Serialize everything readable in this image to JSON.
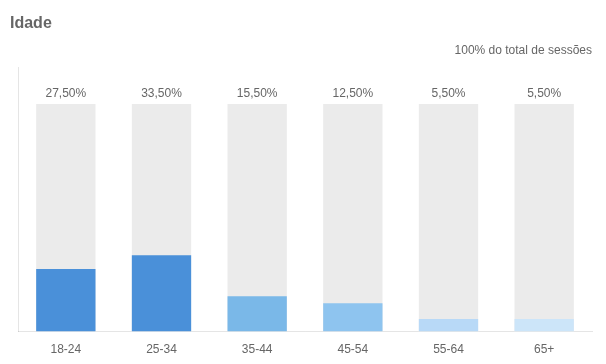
{
  "chart_data": {
    "type": "bar",
    "title": "Idade",
    "subtitle": "100% do total de sessões",
    "categories": [
      "18-24",
      "25-34",
      "35-44",
      "45-54",
      "55-64",
      "65+"
    ],
    "series": [
      {
        "values": [
          100,
          100,
          100,
          100,
          100,
          100
        ],
        "color": "#ebebeb"
      },
      {
        "values": [
          27.5,
          33.5,
          15.5,
          12.5,
          5.5,
          5.5
        ],
        "value_labels": [
          "27,50%",
          "33,50%",
          "15,50%",
          "12,50%",
          "5,50%",
          "5,50%"
        ],
        "colors": [
          "#4a90d9",
          "#4a90d9",
          "#7ab8e8",
          "#8ec4ef",
          "#b8d9f7",
          "#cce5f9"
        ]
      }
    ],
    "ylim": [
      0,
      116
    ],
    "grid": false,
    "legend": false,
    "data_labels": true,
    "tick_labels": "x"
  }
}
